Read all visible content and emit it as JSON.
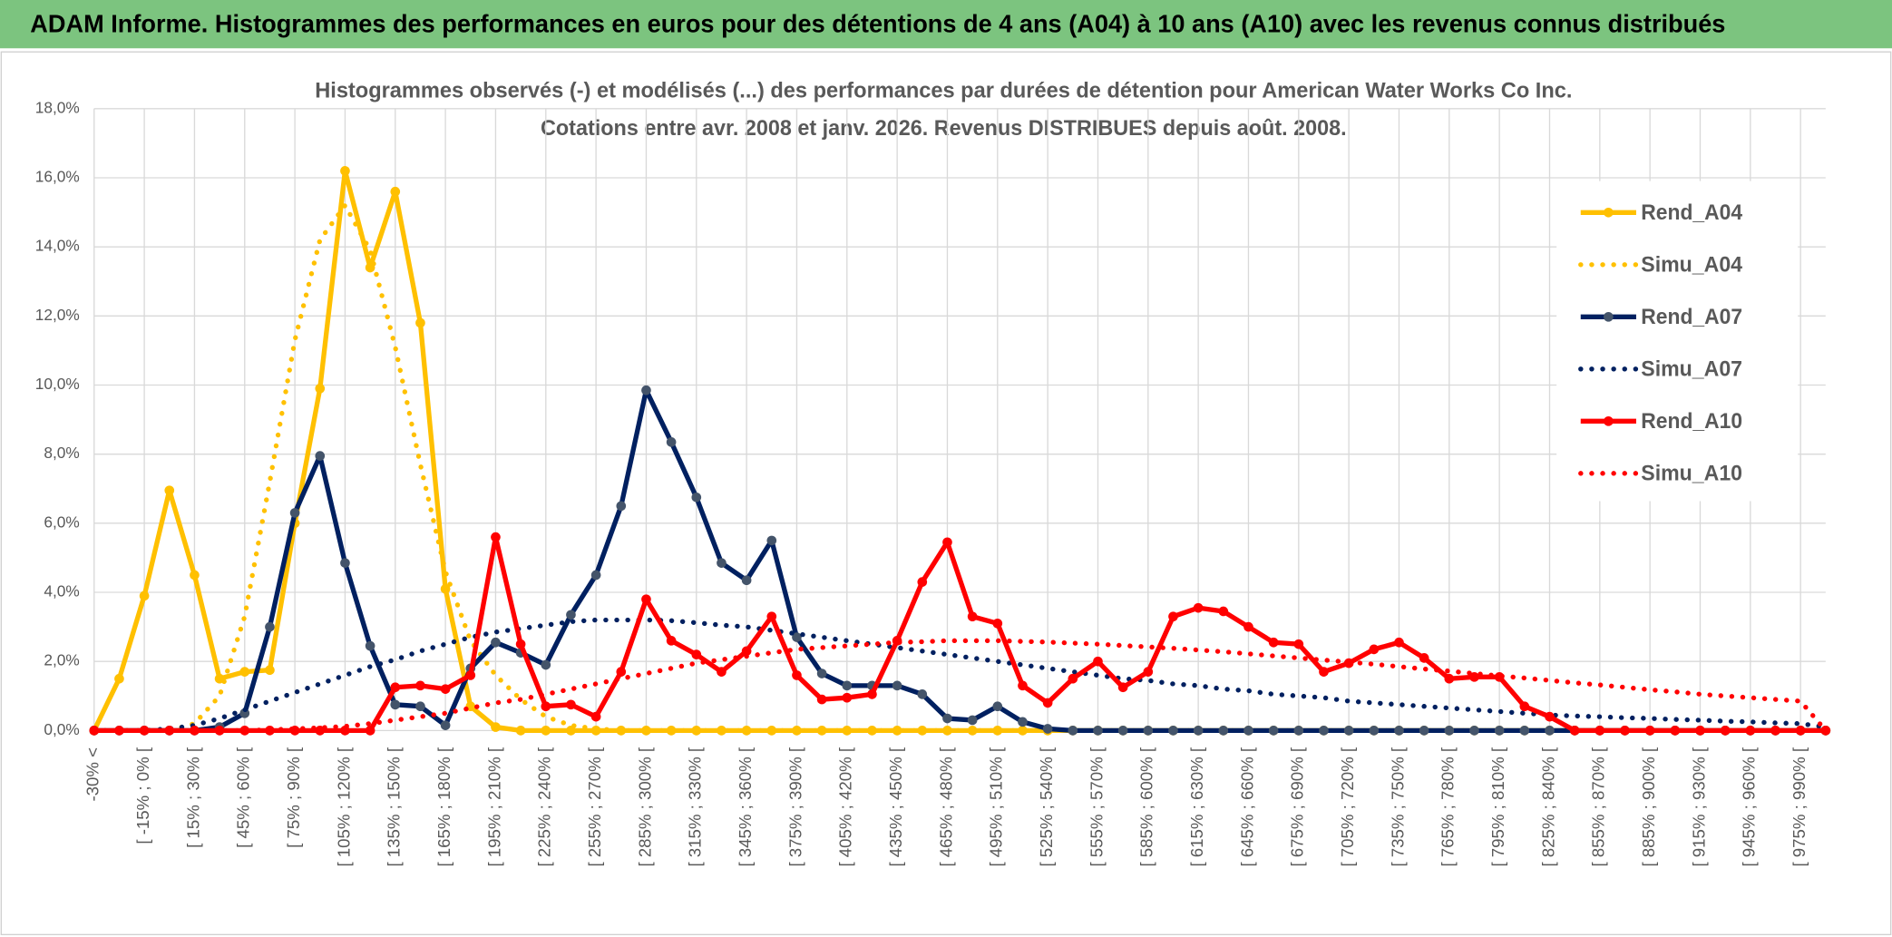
{
  "header": {
    "title": "ADAM Informe. Histogrammes des performances en euros pour des détentions de 4 ans (A04) à 10 ans (A10) avec les revenus connus distribués"
  },
  "chart_data": {
    "type": "line",
    "title": "Histogrammes observés (-) et modélisés (...) des performances par durées de détention pour American Water Works Co Inc.",
    "subtitle": "Cotations entre avr. 2008 et janv. 2026. Revenus DISTRIBUES depuis août. 2008.",
    "categories": [
      "-30% <",
      null,
      "[ -15% ; 0% [",
      null,
      "[ 15% ; 30% [",
      null,
      "[ 45% ; 60% [",
      null,
      "[ 75% ; 90% [",
      null,
      "[ 105% ; 120% [",
      null,
      "[ 135% ; 150% [",
      null,
      "[ 165% ; 180% [",
      null,
      "[ 195% ; 210% [",
      null,
      "[ 225% ; 240% [",
      null,
      "[ 255% ; 270% [",
      null,
      "[ 285% ; 300% [",
      null,
      "[ 315% ; 330% [",
      null,
      "[ 345% ; 360% [",
      null,
      "[ 375% ; 390% [",
      null,
      "[ 405% ; 420% [",
      null,
      "[ 435% ; 450% [",
      null,
      "[ 465% ; 480% [",
      null,
      "[ 495% ; 510% [",
      null,
      "[ 525% ; 540% [",
      null,
      "[ 555% ; 570% [",
      null,
      "[ 585% ; 600% [",
      null,
      "[ 615% ; 630% [",
      null,
      "[ 645% ; 660% [",
      null,
      "[ 675% ; 690% [",
      null,
      "[ 705% ; 720% [",
      null,
      "[ 735% ; 750% [",
      null,
      "[ 765% ; 780% [",
      null,
      "[ 795% ; 810% [",
      null,
      "[ 825% ; 840% [",
      null,
      "[ 855% ; 870% [",
      null,
      "[ 885% ; 900% [",
      null,
      "[ 915% ; 930% [",
      null,
      "[ 945% ; 960% [",
      null,
      "[ 975% ; 990% [",
      null
    ],
    "ylim": [
      0,
      18
    ],
    "yticks": [
      {
        "value": 0,
        "label": "0,0%"
      },
      {
        "value": 2,
        "label": "2,0%"
      },
      {
        "value": 4,
        "label": "4,0%"
      },
      {
        "value": 6,
        "label": "6,0%"
      },
      {
        "value": 8,
        "label": "8,0%"
      },
      {
        "value": 10,
        "label": "10,0%"
      },
      {
        "value": 12,
        "label": "12,0%"
      },
      {
        "value": 14,
        "label": "14,0%"
      },
      {
        "value": 16,
        "label": "16,0%"
      },
      {
        "value": 18,
        "label": "18,0%"
      }
    ],
    "grid": true,
    "legend_position": "right",
    "series": [
      {
        "name": "Rend_A04",
        "color": "#FFC000",
        "line_style": "solid",
        "marker": true,
        "values": [
          0,
          1.5,
          3.9,
          6.95,
          4.5,
          1.5,
          1.7,
          1.75,
          6.0,
          9.9,
          16.2,
          13.4,
          15.6,
          11.8,
          4.1,
          0.7,
          0.1,
          0,
          0,
          0,
          0,
          0,
          0,
          0,
          0,
          0,
          0,
          0,
          0,
          0,
          0,
          0,
          0,
          0,
          0,
          0,
          0,
          0,
          0,
          0,
          0,
          0,
          0,
          0,
          0,
          0,
          0,
          0,
          0,
          0,
          0,
          0,
          0,
          0,
          0,
          0,
          0,
          0,
          0,
          0,
          0,
          0,
          0,
          0,
          0,
          0,
          0,
          0,
          0,
          0
        ]
      },
      {
        "name": "Simu_A04",
        "color": "#FFC000",
        "line_style": "dotted",
        "marker": false,
        "values": [
          0,
          0,
          0,
          0,
          0.2,
          1.0,
          3.3,
          7.2,
          11.3,
          14.2,
          15.2,
          13.9,
          11.1,
          7.7,
          4.6,
          2.6,
          1.6,
          0.9,
          0.4,
          0.15,
          0.05,
          0,
          0,
          0,
          0,
          0,
          0,
          0,
          0,
          0,
          0,
          0,
          0,
          0,
          0,
          0,
          0,
          0,
          0,
          0,
          0,
          0,
          0,
          0,
          0,
          0,
          0,
          0,
          0,
          0,
          0,
          0,
          0,
          0,
          0,
          0,
          0,
          0,
          0,
          0,
          0,
          0,
          0,
          0,
          0,
          0,
          0,
          0,
          0,
          0
        ]
      },
      {
        "name": "Rend_A07",
        "color": "#002060",
        "marker_color": "#44546A",
        "line_style": "solid",
        "marker": true,
        "values": [
          0,
          0,
          0,
          0,
          0,
          0.1,
          0.5,
          3.0,
          6.3,
          7.95,
          4.85,
          2.45,
          0.75,
          0.7,
          0.15,
          1.8,
          2.55,
          2.25,
          1.9,
          3.35,
          4.5,
          6.5,
          9.85,
          8.35,
          6.75,
          4.85,
          4.35,
          5.5,
          2.7,
          1.65,
          1.3,
          1.3,
          1.3,
          1.05,
          0.35,
          0.3,
          0.7,
          0.25,
          0.05,
          0,
          0,
          0,
          0,
          0,
          0,
          0,
          0,
          0,
          0,
          0,
          0,
          0,
          0,
          0,
          0,
          0,
          0,
          0,
          0,
          0,
          0,
          0,
          0,
          0,
          0,
          0,
          0,
          0,
          0,
          0
        ]
      },
      {
        "name": "Simu_A07",
        "color": "#002060",
        "line_style": "dotted",
        "marker": false,
        "values": [
          0,
          0,
          0,
          0.05,
          0.15,
          0.35,
          0.6,
          0.85,
          1.1,
          1.35,
          1.6,
          1.85,
          2.05,
          2.3,
          2.5,
          2.7,
          2.85,
          2.95,
          3.05,
          3.15,
          3.2,
          3.2,
          3.2,
          3.18,
          3.12,
          3.05,
          3.0,
          2.9,
          2.8,
          2.7,
          2.6,
          2.5,
          2.4,
          2.3,
          2.2,
          2.1,
          2.0,
          1.9,
          1.8,
          1.7,
          1.6,
          1.5,
          1.45,
          1.35,
          1.3,
          1.2,
          1.15,
          1.05,
          1.0,
          0.95,
          0.85,
          0.8,
          0.75,
          0.7,
          0.65,
          0.6,
          0.55,
          0.5,
          0.45,
          0.42,
          0.4,
          0.37,
          0.35,
          0.32,
          0.3,
          0.27,
          0.25,
          0.22,
          0.2,
          0.1
        ]
      },
      {
        "name": "Rend_A10",
        "color": "#FF0000",
        "line_style": "solid",
        "marker": true,
        "values": [
          0,
          0,
          0,
          0,
          0,
          0,
          0,
          0,
          0,
          0,
          0,
          0,
          1.25,
          1.3,
          1.2,
          1.6,
          5.6,
          2.5,
          0.7,
          0.75,
          0.4,
          1.7,
          3.8,
          2.6,
          2.2,
          1.7,
          2.3,
          3.3,
          1.6,
          0.9,
          0.95,
          1.05,
          2.6,
          4.3,
          5.45,
          3.3,
          3.1,
          1.3,
          0.8,
          1.5,
          2.0,
          1.25,
          1.7,
          3.3,
          3.55,
          3.45,
          3.0,
          2.55,
          2.5,
          1.7,
          1.95,
          2.35,
          2.55,
          2.1,
          1.5,
          1.55,
          1.55,
          0.7,
          0.4,
          0,
          0,
          0,
          0,
          0,
          0,
          0,
          0,
          0,
          0,
          0
        ]
      },
      {
        "name": "Simu_A10",
        "color": "#FF0000",
        "line_style": "dotted",
        "marker": false,
        "values": [
          0,
          0,
          0,
          0,
          0,
          0,
          0,
          0.02,
          0.05,
          0.08,
          0.12,
          0.2,
          0.3,
          0.4,
          0.5,
          0.65,
          0.8,
          0.9,
          1.05,
          1.2,
          1.35,
          1.5,
          1.65,
          1.8,
          1.95,
          2.05,
          2.15,
          2.25,
          2.35,
          2.4,
          2.45,
          2.5,
          2.55,
          2.57,
          2.6,
          2.6,
          2.6,
          2.58,
          2.56,
          2.53,
          2.5,
          2.46,
          2.42,
          2.38,
          2.33,
          2.28,
          2.22,
          2.16,
          2.1,
          2.04,
          1.98,
          1.92,
          1.85,
          1.78,
          1.72,
          1.65,
          1.58,
          1.52,
          1.45,
          1.38,
          1.32,
          1.25,
          1.18,
          1.12,
          1.05,
          1.0,
          0.95,
          0.9,
          0.85,
          0
        ]
      }
    ]
  }
}
